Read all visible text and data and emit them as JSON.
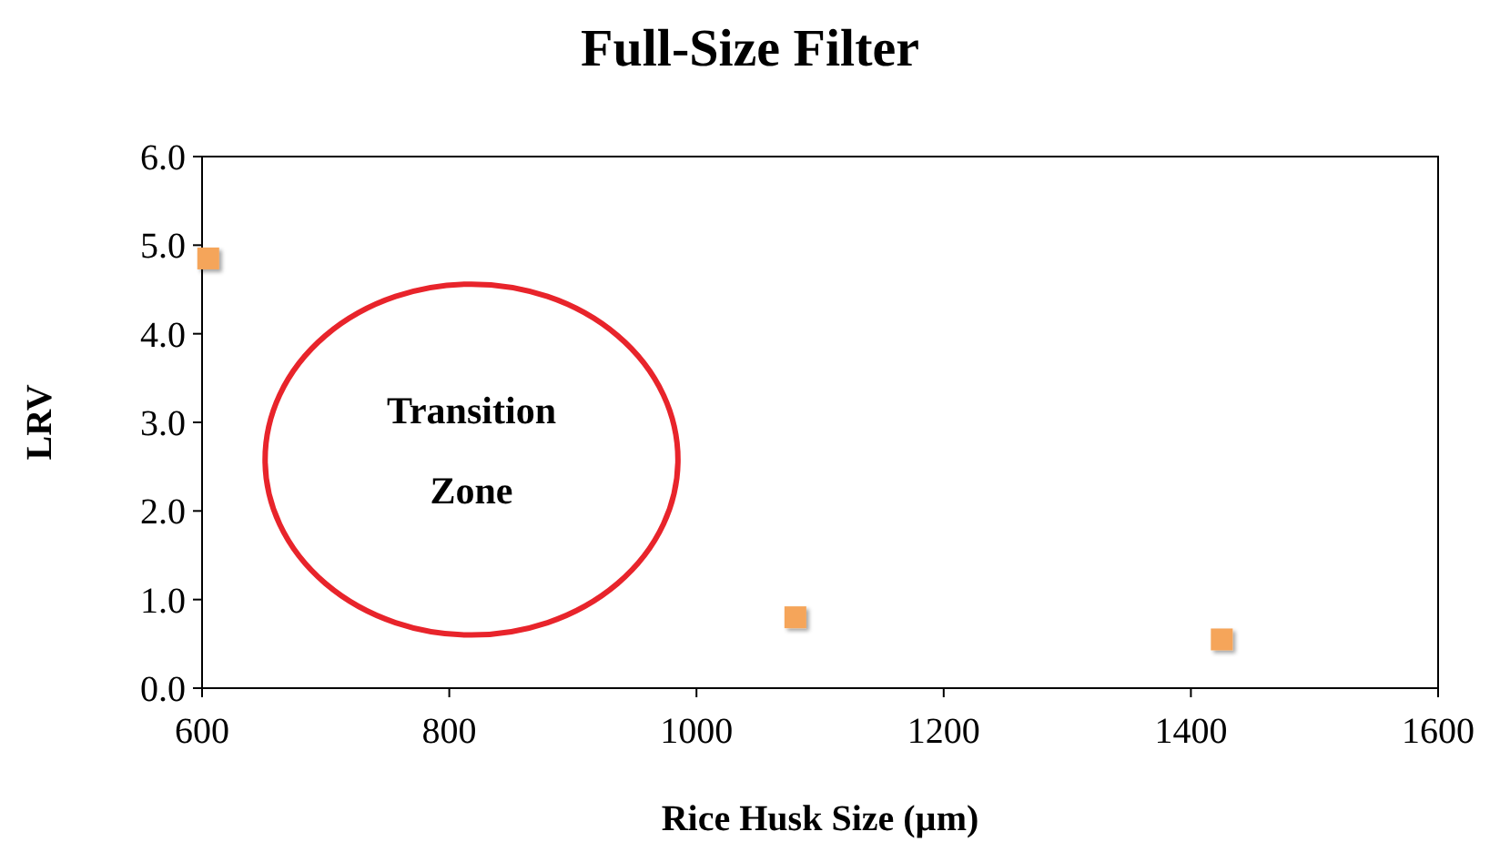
{
  "chart_data": {
    "type": "scatter",
    "title": "Full-Size Filter",
    "xlabel": "Rice Husk Size (µm)",
    "ylabel": "LRV",
    "annotations": [
      "Transition Zone"
    ],
    "series": [
      {
        "color": "#f5a55a",
        "x": [
          605,
          1080,
          1425
        ],
        "values": [
          4.85,
          0.8,
          0.55
        ]
      }
    ],
    "marker": "square",
    "xlim": [
      600,
      1600
    ],
    "xticks": [
      600,
      800,
      1000,
      1200,
      1400,
      1600
    ],
    "ylim": [
      0,
      6
    ],
    "yticks": [
      {
        "value": 0,
        "label": "0.0"
      },
      {
        "value": 1,
        "label": "1.0"
      },
      {
        "value": 2,
        "label": "2.0"
      },
      {
        "value": 3,
        "label": "3.0"
      },
      {
        "value": 4,
        "label": "4.0"
      },
      {
        "value": 5,
        "label": "5.0"
      },
      {
        "value": 6,
        "label": "6.0"
      }
    ]
  }
}
